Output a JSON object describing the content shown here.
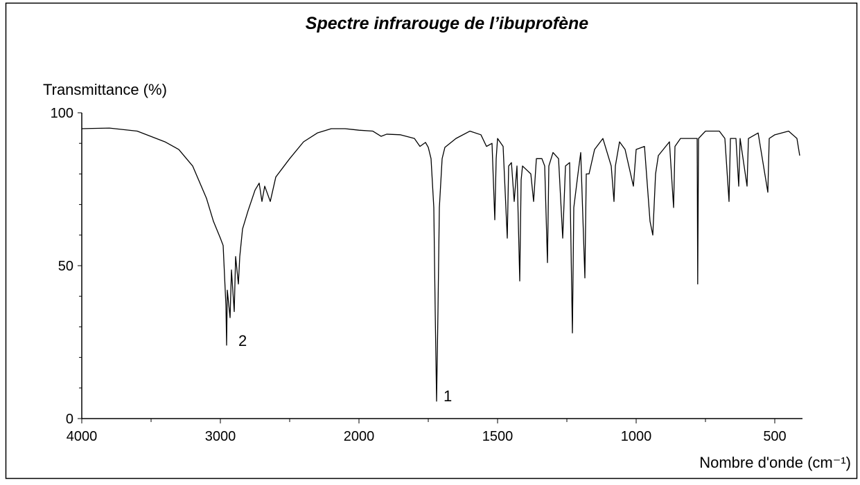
{
  "chart_data": {
    "type": "line",
    "title": "Spectre infrarouge de l’ibuprofène",
    "y_label": "Transmittance (%)",
    "x_label": "Nombre d'onde (cm⁻¹)",
    "xlim": [
      4000,
      400
    ],
    "xbreak": 2000,
    "xticks": [
      4000,
      3000,
      2000,
      1500,
      1000,
      500
    ],
    "xminorticks": [
      3500,
      2500,
      1750,
      1250,
      750
    ],
    "ylim": [
      0,
      100
    ],
    "yticks": [
      0,
      50,
      100
    ],
    "yminorticks": [
      10,
      20,
      30,
      40,
      60,
      70,
      80,
      90
    ],
    "color": "#000000",
    "annotations": [
      "2",
      "1"
    ],
    "x": [
      4000,
      3800,
      3600,
      3400,
      3300,
      3200,
      3100,
      3050,
      3000,
      2980,
      2960,
      2955,
      2950,
      2930,
      2920,
      2900,
      2890,
      2870,
      2860,
      2840,
      2800,
      2750,
      2720,
      2700,
      2680,
      2640,
      2600,
      2500,
      2400,
      2300,
      2200,
      2100,
      2000,
      1950,
      1920,
      1900,
      1850,
      1800,
      1780,
      1760,
      1750,
      1740,
      1730,
      1725,
      1720,
      1715,
      1710,
      1700,
      1690,
      1650,
      1600,
      1560,
      1540,
      1520,
      1510,
      1505,
      1500,
      1480,
      1465,
      1460,
      1450,
      1440,
      1430,
      1420,
      1415,
      1410,
      1380,
      1370,
      1360,
      1340,
      1330,
      1320,
      1315,
      1300,
      1280,
      1265,
      1255,
      1240,
      1230,
      1225,
      1210,
      1200,
      1185,
      1180,
      1170,
      1150,
      1120,
      1090,
      1080,
      1075,
      1060,
      1040,
      1010,
      1000,
      970,
      950,
      940,
      930,
      920,
      880,
      865,
      860,
      840,
      780,
      778,
      775,
      750,
      700,
      680,
      665,
      660,
      640,
      630,
      625,
      600,
      595,
      560,
      525,
      520,
      500,
      450,
      420,
      410
    ],
    "values": [
      94.8,
      95,
      94,
      90.5,
      88,
      82.6,
      72,
      64.5,
      59,
      56.6,
      37,
      24,
      42,
      33,
      48.6,
      35,
      53,
      44,
      53,
      62,
      68,
      74.7,
      77,
      71,
      76,
      71,
      79,
      85,
      90.5,
      93.4,
      94.8,
      94.8,
      94.3,
      94,
      92.3,
      93,
      92.8,
      91.6,
      89,
      90.3,
      88.7,
      85,
      69,
      35,
      5.7,
      35,
      69,
      85,
      88.7,
      91.6,
      94,
      92.8,
      89,
      90,
      65,
      85,
      91.6,
      89,
      59,
      82.6,
      83.7,
      71,
      82.6,
      45,
      78,
      82.6,
      80,
      71,
      85,
      85,
      82.6,
      51,
      82.6,
      87,
      85,
      59,
      82.6,
      83.7,
      28,
      69,
      80,
      87,
      46,
      80,
      80,
      88,
      91.6,
      82.6,
      71,
      82.6,
      90.5,
      88,
      76,
      88,
      89,
      64.5,
      60,
      80,
      86,
      90.5,
      69,
      89,
      91.6,
      91.6,
      44,
      91.6,
      94,
      94,
      91.6,
      71,
      91.6,
      91.6,
      76,
      91.6,
      76,
      91.6,
      93.4,
      74,
      91.6,
      92.8,
      94,
      91.6,
      86
    ]
  }
}
